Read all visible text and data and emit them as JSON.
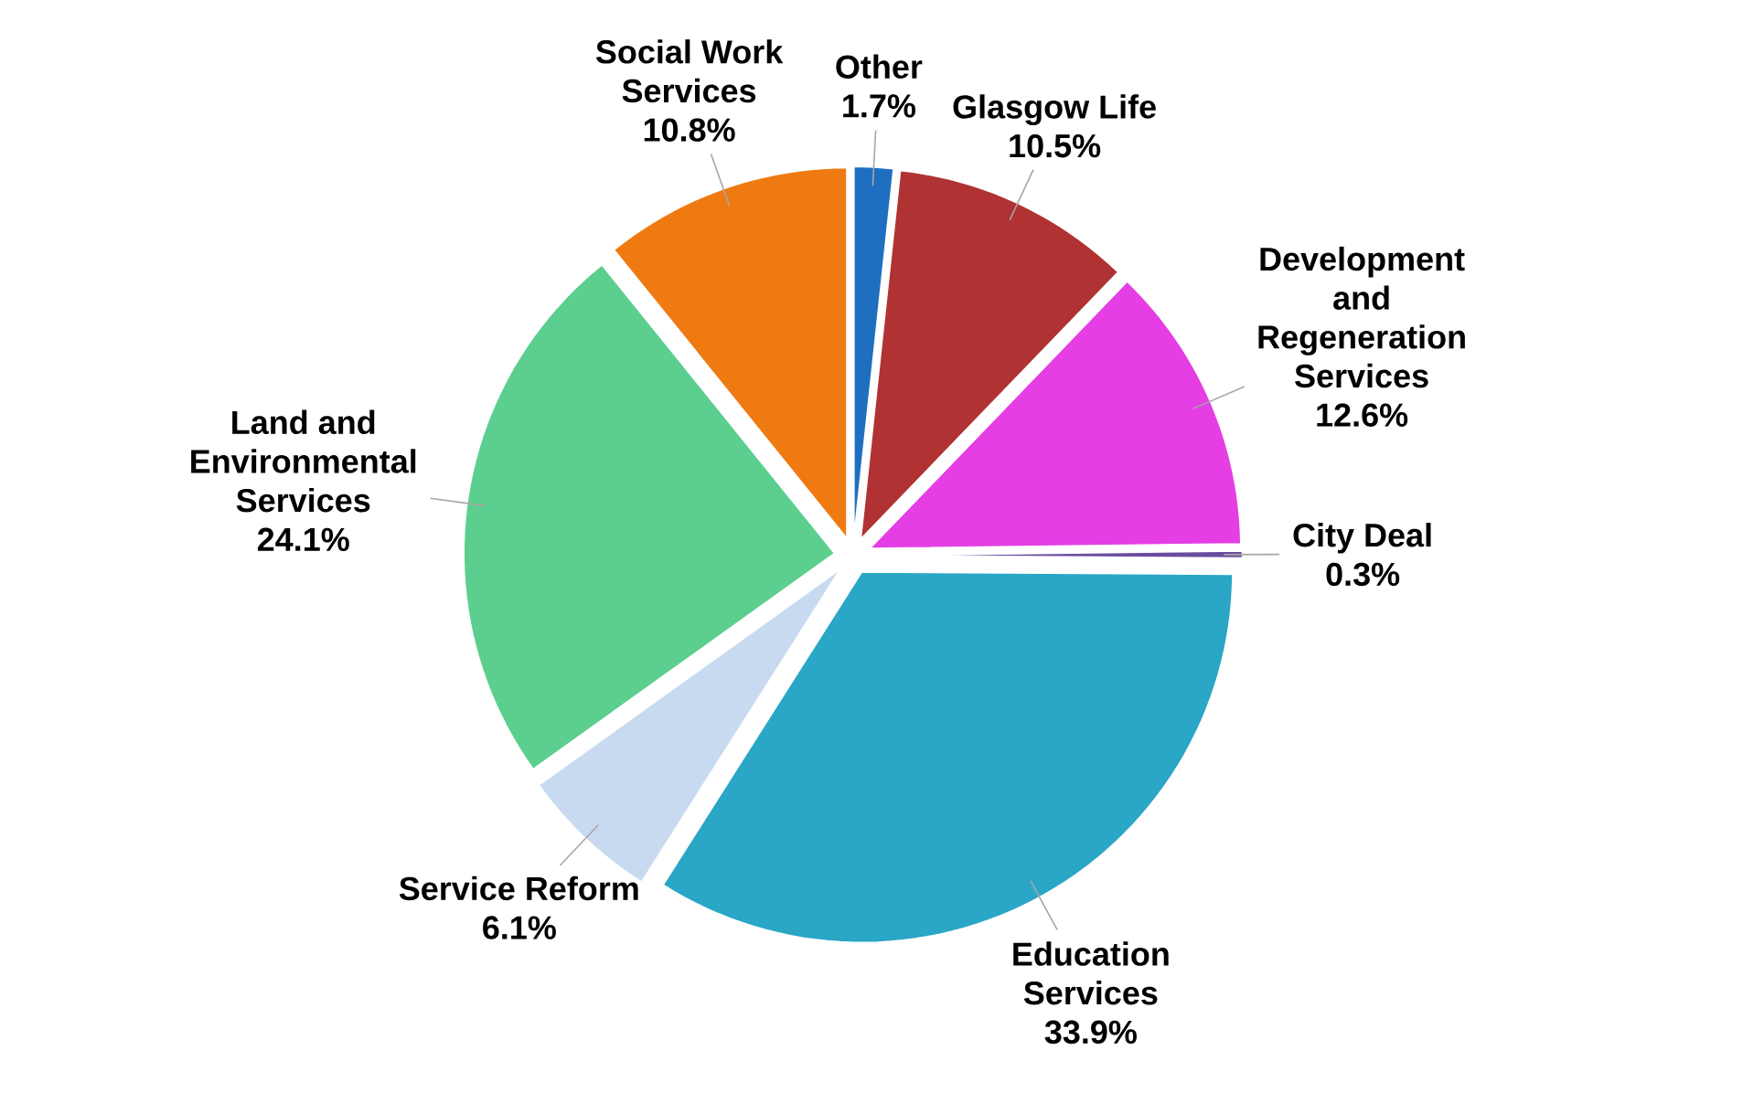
{
  "chart_data": {
    "type": "pie",
    "categories": [
      "Other",
      "Glasgow Life",
      "Development and Regeneration Services",
      "City Deal",
      "Education Services",
      "Service Reform",
      "Land and Environmental Services",
      "Social Work Services"
    ],
    "values": [
      1.7,
      10.5,
      12.6,
      0.3,
      33.9,
      6.1,
      24.1,
      10.8
    ],
    "value_labels": [
      "1.7%",
      "10.5%",
      "12.6%",
      "0.3%",
      "33.9%",
      "6.1%",
      "24.1%",
      "10.8%"
    ],
    "colors": [
      "#1f6fc0",
      "#b03232",
      "#e43ee4",
      "#6a4ca0",
      "#2aa6c6",
      "#c8daf0",
      "#5ccf8f",
      "#f07a12"
    ]
  }
}
